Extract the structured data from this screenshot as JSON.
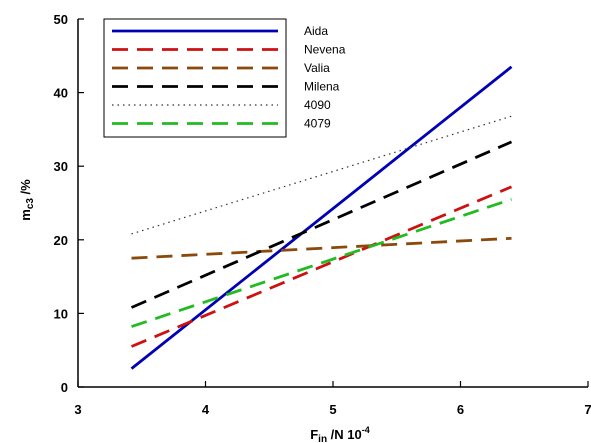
{
  "chart_data": {
    "type": "line",
    "title": "",
    "xlim": [
      3,
      7
    ],
    "ylim": [
      0,
      50
    ],
    "x_ticks": [
      3,
      4,
      5,
      6,
      7
    ],
    "y_ticks": [
      0,
      10,
      20,
      30,
      40,
      50
    ],
    "xlabel": {
      "main": "F",
      "sub": "in",
      "rest": " /N 10",
      "sup": "-4"
    },
    "ylabel": {
      "main": "m",
      "sub": "c3",
      "rest": " /%"
    },
    "legend_position": "top-left",
    "series": [
      {
        "name": "Aida",
        "color": "#0000b4",
        "style": "solid",
        "x": [
          3.42,
          6.4
        ],
        "y": [
          2.5,
          43.5
        ]
      },
      {
        "name": "Nevena",
        "color": "#cc1111",
        "style": "dashed",
        "x": [
          3.42,
          6.4
        ],
        "y": [
          5.5,
          27.2
        ]
      },
      {
        "name": "Valia",
        "color": "#8b4a0c",
        "style": "dashed",
        "x": [
          3.42,
          6.4
        ],
        "y": [
          17.5,
          20.2
        ]
      },
      {
        "name": "Milena",
        "color": "#000000",
        "style": "dashed",
        "x": [
          3.42,
          6.4
        ],
        "y": [
          10.8,
          33.3
        ]
      },
      {
        "name": "4090",
        "color": "#333333",
        "style": "dotted",
        "x": [
          3.42,
          6.4
        ],
        "y": [
          20.8,
          36.8
        ]
      },
      {
        "name": "4079",
        "color": "#22bb22",
        "style": "dashed",
        "x": [
          3.42,
          6.4
        ],
        "y": [
          8.2,
          25.5
        ]
      }
    ]
  }
}
